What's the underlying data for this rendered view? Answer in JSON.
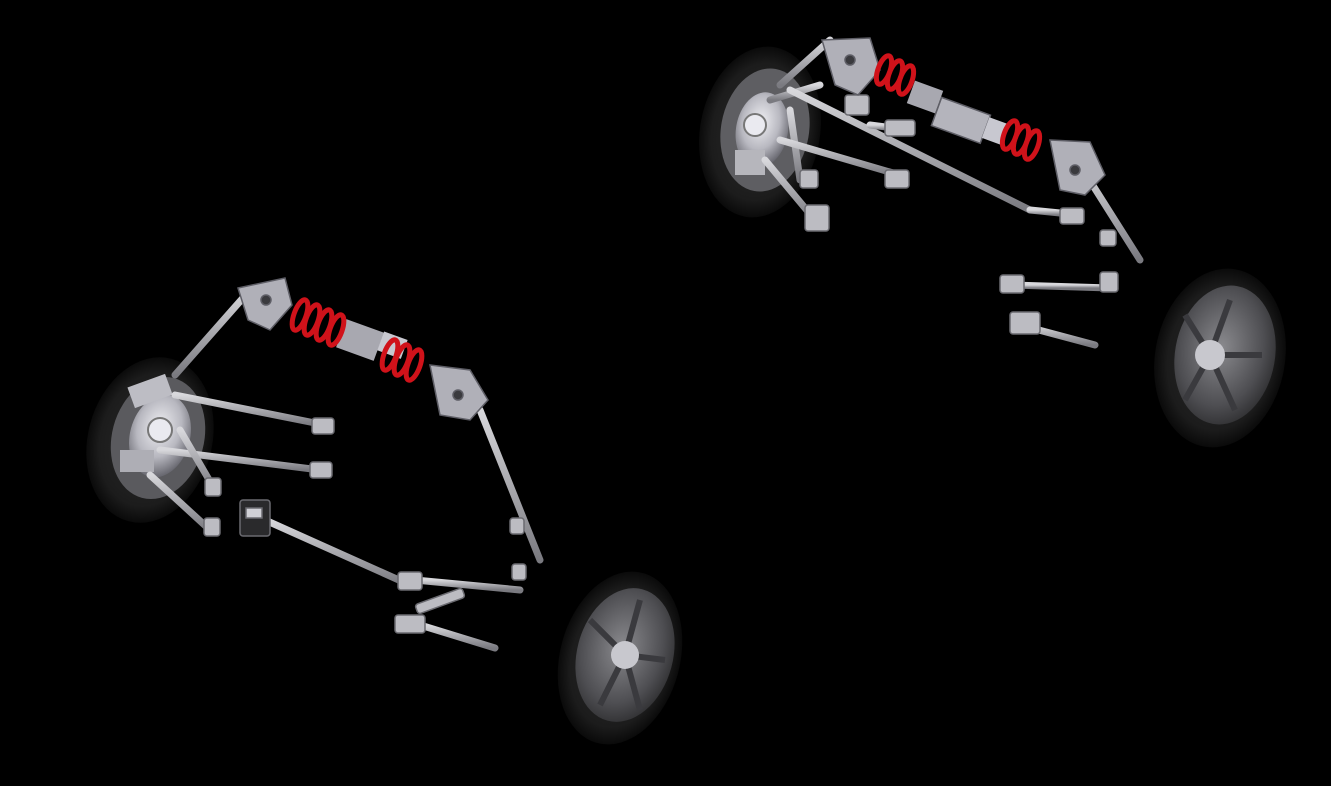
{
  "scene": {
    "description_label": "suspension-cad-render",
    "background": "#000000",
    "colors": {
      "metal_light": "#c8c8cc",
      "metal_mid": "#9a9aa0",
      "metal_dark": "#5a5a60",
      "spring_red": "#d0121a",
      "tire_dark": "#1a1a1a",
      "rim_gray": "#6a6a6e"
    },
    "assemblies": [
      "front-suspension-assembly",
      "rear-suspension-assembly"
    ]
  }
}
